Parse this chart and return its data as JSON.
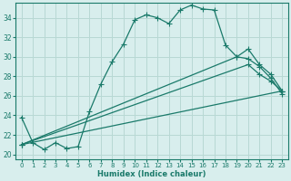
{
  "xlabel": "Humidex (Indice chaleur)",
  "bg_color": "#d8eeed",
  "grid_color": "#b8d8d4",
  "line_color": "#1a7a6a",
  "xlim": [
    -0.5,
    23.5
  ],
  "ylim": [
    19.5,
    35.5
  ],
  "xticks": [
    0,
    1,
    2,
    3,
    4,
    5,
    6,
    7,
    8,
    9,
    10,
    11,
    12,
    13,
    14,
    15,
    16,
    17,
    18,
    19,
    20,
    21,
    22,
    23
  ],
  "yticks": [
    20,
    22,
    24,
    26,
    28,
    30,
    32,
    34
  ],
  "line1_x": [
    0,
    1,
    2,
    3,
    4,
    5,
    6,
    7,
    8,
    9,
    10,
    11,
    12,
    13,
    14,
    15,
    16,
    17,
    18,
    19,
    20,
    21,
    22,
    23
  ],
  "line1_y": [
    23.8,
    21.2,
    20.5,
    21.2,
    20.6,
    20.8,
    24.4,
    27.2,
    29.5,
    31.3,
    33.8,
    34.3,
    34.0,
    33.4,
    34.8,
    35.3,
    34.9,
    34.8,
    31.2,
    30.0,
    29.8,
    29.0,
    27.8,
    26.2
  ],
  "line2_x": [
    0,
    23
  ],
  "line2_y": [
    21.0,
    26.5
  ],
  "line3_x": [
    0,
    20,
    21,
    22,
    23
  ],
  "line3_y": [
    21.0,
    29.2,
    28.2,
    27.5,
    26.5
  ],
  "line4_x": [
    0,
    19,
    20,
    21,
    22,
    23
  ],
  "line4_y": [
    21.0,
    30.0,
    30.8,
    29.2,
    28.2,
    26.5
  ]
}
